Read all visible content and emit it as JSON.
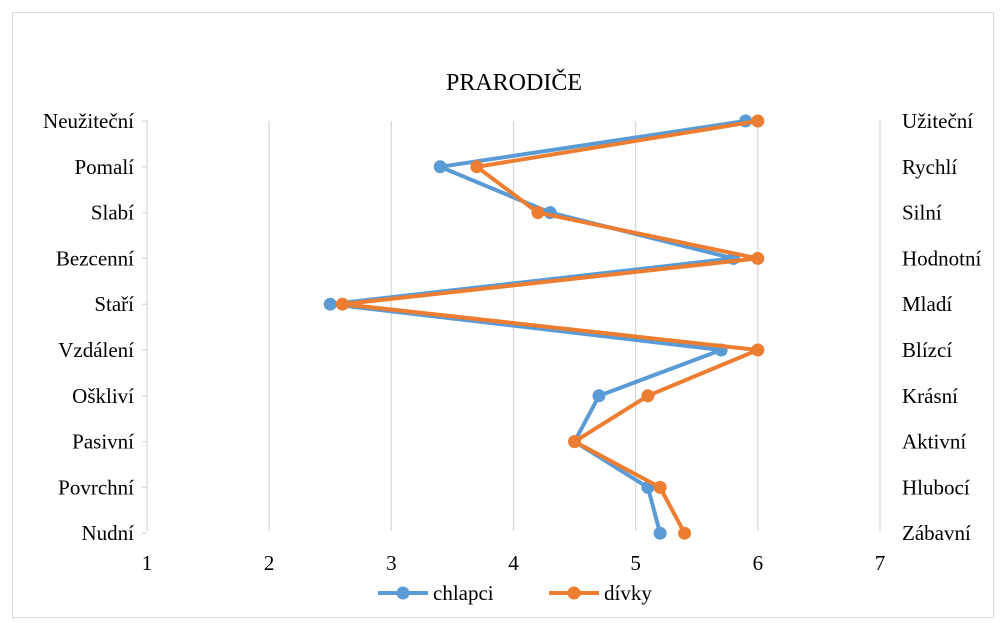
{
  "chart_data": {
    "type": "line",
    "title": "PRARODIČE",
    "left_labels": [
      "Neužiteční",
      "Pomalí",
      "Slabí",
      "Bezcenní",
      "Staří",
      "Vzdálení",
      "Oškliví",
      "Pasivní",
      "Povrchní",
      "Nudní"
    ],
    "right_labels": [
      "Užiteční",
      "Rychlí",
      "Silní",
      "Hodnotní",
      "Mladí",
      "Blízcí",
      "Krásní",
      "Aktivní",
      "Hlubocí",
      "Zábavní"
    ],
    "xlim": [
      1,
      7
    ],
    "xticks": [
      "1",
      "2",
      "3",
      "4",
      "5",
      "6",
      "7"
    ],
    "grid": true,
    "legend_position": "bottom",
    "series": [
      {
        "name": "chlapci",
        "color": "#5b9bd5",
        "values": [
          5.9,
          3.4,
          4.3,
          5.8,
          2.5,
          5.7,
          4.7,
          4.5,
          5.1,
          5.2
        ]
      },
      {
        "name": "dívky",
        "color": "#ed7d31",
        "values": [
          6.0,
          3.7,
          4.2,
          6.0,
          2.6,
          6.0,
          5.1,
          4.5,
          5.2,
          5.4
        ]
      }
    ]
  }
}
